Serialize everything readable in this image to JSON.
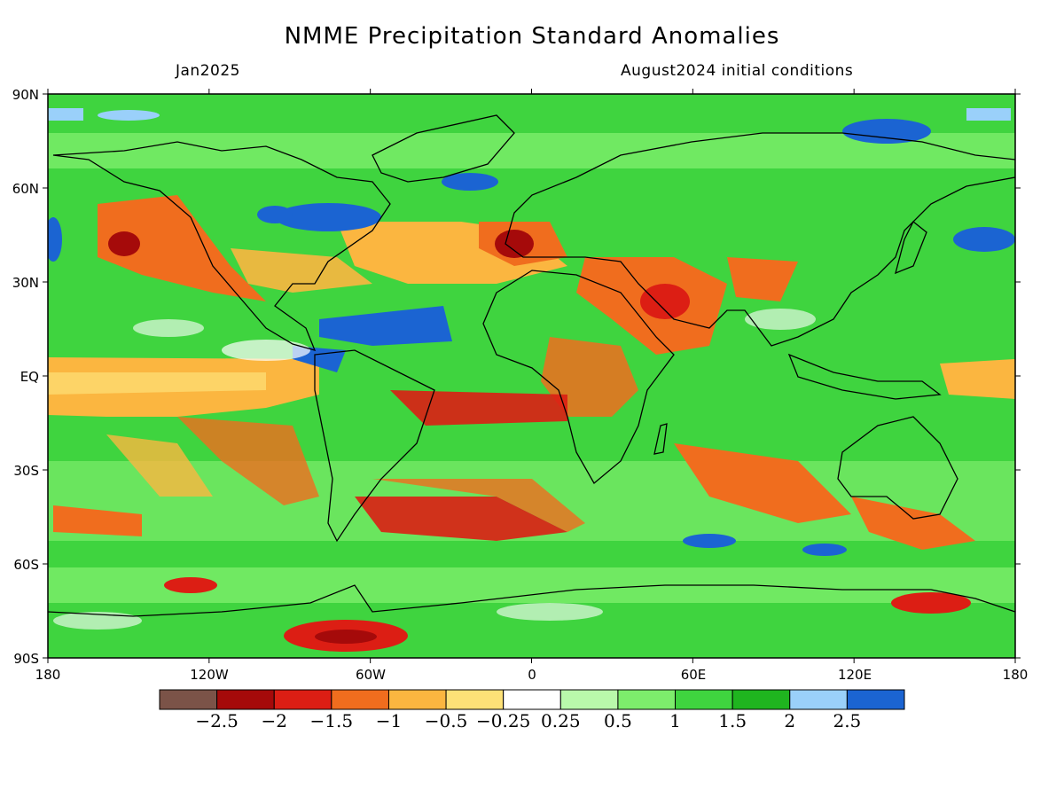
{
  "title": "NMME Precipitation Standard Anomalies",
  "subtitle_left": "Jan2025",
  "subtitle_right": "August2024 initial conditions",
  "lat_labels": [
    "90N",
    "60N",
    "30N",
    "EQ",
    "30S",
    "60S",
    "90S"
  ],
  "lon_labels": [
    "180",
    "120W",
    "60W",
    "0",
    "60E",
    "120E",
    "180"
  ],
  "colorbar": {
    "colors": [
      "#7b5348",
      "#a50a0a",
      "#dc1e14",
      "#f06d1e",
      "#fbb640",
      "#fde177",
      "#ffffff",
      "#b9f9ab",
      "#7ded6c",
      "#3fd43f",
      "#1fb51f",
      "#9ad0fa",
      "#1b64d2"
    ],
    "labels": [
      "−2.5",
      "−2",
      "−1.5",
      "−1",
      "−0.5",
      "−0.25",
      "0.25",
      "0.5",
      "1",
      "1.5",
      "2",
      "2.5"
    ]
  },
  "map_colors": {
    "ocean_base": "#3fd43f",
    "land_outline": "#000000"
  }
}
